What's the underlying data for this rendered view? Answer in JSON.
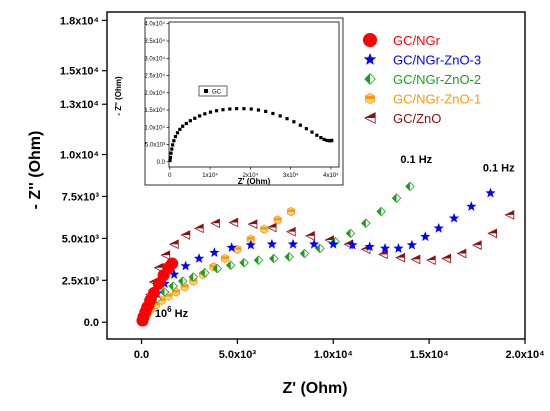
{
  "chart_data": {
    "type": "scatter",
    "xlabel": "Z' (Ohm)",
    "ylabel": "- Z'' (Ohm)",
    "xlim": [
      -1800,
      20000
    ],
    "ylim": [
      -1000,
      18500
    ],
    "x_ticks": [
      {
        "value": 0,
        "label": "0.0"
      },
      {
        "value": 5000,
        "label": "5.0x10³"
      },
      {
        "value": 10000,
        "label": "1.0x10⁴"
      },
      {
        "value": 15000,
        "label": "1.5x10⁴"
      },
      {
        "value": 20000,
        "label": "2.0x10⁴"
      }
    ],
    "y_ticks": [
      {
        "value": 0,
        "label": "0.0"
      },
      {
        "value": 2500,
        "label": "2.5x10³"
      },
      {
        "value": 5000,
        "label": "5.0x10³"
      },
      {
        "value": 7500,
        "label": "7.5x10³"
      },
      {
        "value": 10000,
        "label": "1.0x10⁴"
      },
      {
        "value": 13000,
        "label": "1.3x10⁴"
      },
      {
        "value": 15000,
        "label": "1.5x10⁴"
      },
      {
        "value": 18000,
        "label": "1.8x10⁴"
      }
    ],
    "legend_position": "top-right",
    "series": [
      {
        "name": "GC/NGr",
        "color": "#ff0000",
        "marker": "circle",
        "x": [
          50,
          100,
          200,
          300,
          450,
          650,
          900,
          1150,
          1400,
          1600
        ],
        "y": [
          100,
          300,
          600,
          900,
          1300,
          1750,
          2300,
          2800,
          3250,
          3500
        ]
      },
      {
        "name": "GC/NGr-ZnO-3",
        "color": "#0000ff",
        "marker": "star",
        "x": [
          50,
          150,
          300,
          500,
          800,
          1200,
          1700,
          2300,
          3000,
          3800,
          4700,
          5700,
          6800,
          7900,
          9000,
          10000,
          11000,
          11900,
          12700,
          13400,
          14100,
          14800,
          15500,
          16300,
          17200,
          18200
        ],
        "y": [
          100,
          350,
          700,
          1150,
          1700,
          2300,
          2850,
          3350,
          3800,
          4150,
          4450,
          4600,
          4650,
          4650,
          4650,
          4650,
          4600,
          4500,
          4400,
          4400,
          4600,
          5100,
          5600,
          6200,
          6900,
          7700
        ]
      },
      {
        "name": "GC/NGr-ZnO-2",
        "color": "#1e9e1e",
        "marker": "diamond",
        "x": [
          50,
          150,
          300,
          500,
          800,
          1200,
          1650,
          2150,
          2700,
          3300,
          3950,
          4650,
          5350,
          6100,
          6900,
          7700,
          8500,
          9300,
          10100,
          10900,
          11700,
          12500,
          13300,
          14000
        ],
        "y": [
          100,
          350,
          650,
          1000,
          1400,
          1800,
          2150,
          2450,
          2700,
          2950,
          3200,
          3400,
          3550,
          3700,
          3800,
          3900,
          4100,
          4400,
          4800,
          5300,
          5900,
          6600,
          7400,
          8100
        ]
      },
      {
        "name": "GC/NGr-ZnO-1",
        "color": "#ff9900",
        "marker": "hexagon",
        "x": [
          50,
          150,
          300,
          500,
          750,
          1050,
          1400,
          1800,
          2250,
          2700,
          3200,
          3750,
          4350,
          5000,
          5700,
          6400,
          7100,
          7800
        ],
        "y": [
          50,
          250,
          500,
          800,
          1050,
          1300,
          1550,
          1800,
          2100,
          2450,
          2850,
          3300,
          3800,
          4350,
          4950,
          5550,
          6100,
          6600
        ]
      },
      {
        "name": "GC/ZnO",
        "color": "#8b1010",
        "marker": "triangle-left",
        "x": [
          50,
          150,
          300,
          450,
          650,
          900,
          1250,
          1700,
          2300,
          3000,
          3850,
          4800,
          5800,
          6800,
          7800,
          8800,
          9800,
          10800,
          11700,
          12600,
          13500,
          14300,
          15100,
          15900,
          16700,
          17500,
          18300,
          19200
        ],
        "y": [
          100,
          500,
          1000,
          1650,
          2400,
          3250,
          4000,
          4650,
          5200,
          5600,
          5900,
          5950,
          5850,
          5650,
          5400,
          5150,
          4900,
          4650,
          4350,
          4050,
          3850,
          3750,
          3700,
          3800,
          4100,
          4600,
          5300,
          6400
        ]
      }
    ],
    "annotations": [
      {
        "text": "0.1 Hz",
        "x": 13500,
        "y": 9500
      },
      {
        "text": "0.1 Hz",
        "x": 17800,
        "y": 9000
      },
      {
        "text_main": "10",
        "text_sup": "6",
        "text_unit": " Hz",
        "x": 700,
        "y": 300
      }
    ],
    "inset": {
      "xlabel": "Z' (Ohm)",
      "ylabel": "- Z'' (Ohm)",
      "xlim": [
        -200,
        42000
      ],
      "ylim": [
        -1500,
        40500
      ],
      "x_ticks": [
        {
          "value": 0,
          "label": "0"
        },
        {
          "value": 10000,
          "label": "1x10⁴"
        },
        {
          "value": 20000,
          "label": "2x10⁴"
        },
        {
          "value": 30000,
          "label": "3x10⁴"
        },
        {
          "value": 40000,
          "label": "4x10⁴"
        }
      ],
      "y_ticks": [
        {
          "value": 0,
          "label": "0.0"
        },
        {
          "value": 5000,
          "label": "5.0x10³"
        },
        {
          "value": 10000,
          "label": "1.0x10⁴"
        },
        {
          "value": 15000,
          "label": "1.5x10⁴"
        },
        {
          "value": 20000,
          "label": "2.0x10⁴"
        },
        {
          "value": 25000,
          "label": "2.5x10⁴"
        },
        {
          "value": 30000,
          "label": "3.0x10⁴"
        },
        {
          "value": 35000,
          "label": "3.5x10⁴"
        },
        {
          "value": 40000,
          "label": "4.0x10⁴"
        }
      ],
      "series": {
        "name": "GC",
        "color": "#000000",
        "marker": "square",
        "x": [
          50,
          150,
          300,
          500,
          700,
          1000,
          1400,
          1900,
          2500,
          3200,
          4100,
          5100,
          6200,
          7400,
          8700,
          10100,
          11600,
          13200,
          14900,
          16600,
          18400,
          20200,
          22000,
          23800,
          25600,
          27400,
          29100,
          30800,
          32400,
          33900,
          35300,
          36500,
          37500,
          38300,
          39000,
          39600,
          40000,
          40200
        ],
        "y": [
          400,
          1300,
          2500,
          3700,
          4900,
          6100,
          7300,
          8400,
          9400,
          10300,
          11100,
          11900,
          12600,
          13300,
          13900,
          14400,
          14800,
          15100,
          15300,
          15400,
          15400,
          15300,
          15000,
          14600,
          14000,
          13300,
          12500,
          11600,
          10600,
          9600,
          8600,
          7700,
          7000,
          6500,
          6200,
          6100,
          6100,
          6200
        ]
      }
    }
  }
}
